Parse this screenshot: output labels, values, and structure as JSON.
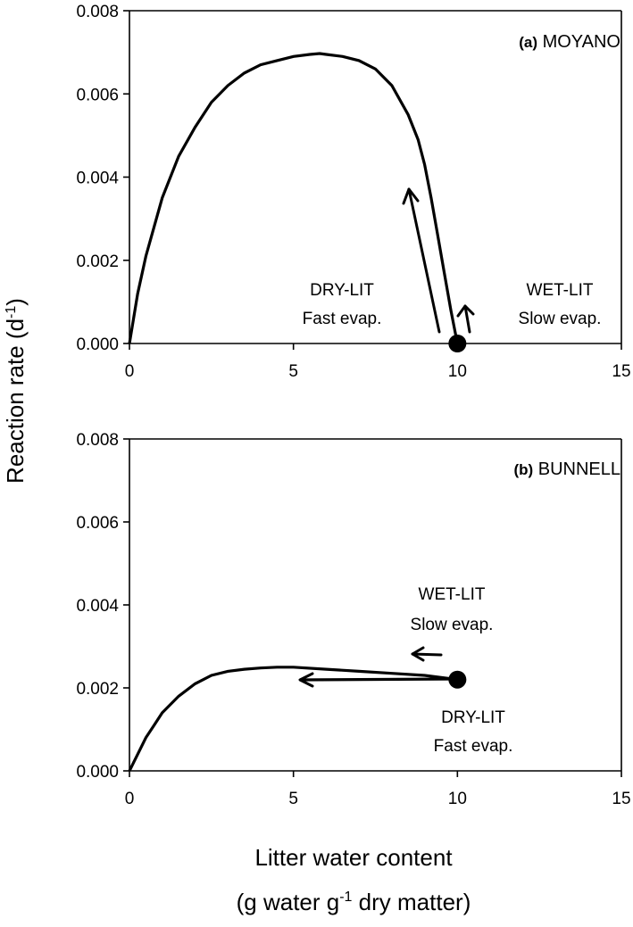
{
  "y_axis_title": "Reaction rate (d",
  "y_axis_title_sup": "-1",
  "y_axis_title_end": ")",
  "x_axis_title_line1": "Litter water content",
  "x_axis_title_line2_a": "(g water g",
  "x_axis_title_line2_sup": "-1",
  "x_axis_title_line2_b": " dry matter)",
  "chart_data": [
    {
      "type": "line",
      "panel": "(a)",
      "title": "MOYANO",
      "xlim": [
        0,
        15
      ],
      "ylim": [
        0,
        0.008
      ],
      "x_ticks": [
        "0",
        "5",
        "10",
        "15"
      ],
      "y_ticks": [
        "0.000",
        "0.002",
        "0.004",
        "0.006",
        "0.008"
      ],
      "series": [
        {
          "x": [
            0,
            0.25,
            0.5,
            1,
            1.5,
            2,
            2.5,
            3,
            3.5,
            4,
            4.5,
            5,
            5.5,
            5.8,
            6,
            6.5,
            7,
            7.5,
            8,
            8.5,
            8.8,
            9,
            9.2,
            9.4,
            9.6,
            9.8,
            10
          ],
          "values": [
            0,
            0.0012,
            0.0021,
            0.0035,
            0.0045,
            0.0052,
            0.0058,
            0.0062,
            0.0065,
            0.0067,
            0.0068,
            0.0069,
            0.00695,
            0.00697,
            0.00695,
            0.0069,
            0.0068,
            0.0066,
            0.0062,
            0.0055,
            0.0049,
            0.0043,
            0.0035,
            0.0026,
            0.0017,
            0.0008,
            0
          ]
        }
      ],
      "start_point": {
        "x": 10,
        "y": 0
      },
      "annotations": [
        {
          "line1": "DRY-LIT",
          "line2": "Fast evap."
        },
        {
          "line1": "WET-LIT",
          "line2": "Slow evap."
        }
      ]
    },
    {
      "type": "line",
      "panel": "(b)",
      "title": "BUNNELL",
      "xlim": [
        0,
        15
      ],
      "ylim": [
        0,
        0.008
      ],
      "x_ticks": [
        "0",
        "5",
        "10",
        "15"
      ],
      "y_ticks": [
        "0.000",
        "0.002",
        "0.004",
        "0.006",
        "0.008"
      ],
      "series": [
        {
          "x": [
            0,
            0.25,
            0.5,
            0.75,
            1,
            1.5,
            2,
            2.5,
            3,
            3.5,
            4,
            4.5,
            5,
            6,
            7,
            8,
            9,
            10
          ],
          "values": [
            0,
            0.0004,
            0.0008,
            0.0011,
            0.0014,
            0.0018,
            0.0021,
            0.0023,
            0.0024,
            0.00245,
            0.00248,
            0.0025,
            0.0025,
            0.00245,
            0.0024,
            0.00235,
            0.0023,
            0.0022
          ]
        }
      ],
      "start_point": {
        "x": 10,
        "y": 0.0022
      },
      "annotations": [
        {
          "line1": "WET-LIT",
          "line2": "Slow evap."
        },
        {
          "line1": "DRY-LIT",
          "line2": "Fast evap."
        }
      ]
    }
  ]
}
